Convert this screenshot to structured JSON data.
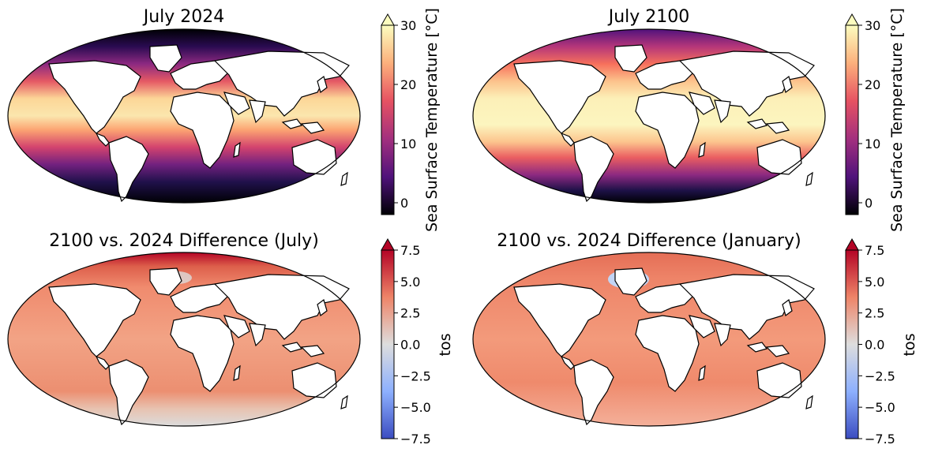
{
  "panels": [
    {
      "title": "July 2024",
      "kind": "sst",
      "colorbar_label": "Sea Surface Temperature [°C]",
      "colorbar_ticks": [
        "30",
        "20",
        "10",
        "0"
      ],
      "colorbar_tick_values": [
        30,
        20,
        10,
        0
      ],
      "colorbar_range": [
        -2,
        30
      ],
      "colormap": "magma"
    },
    {
      "title": "July 2100",
      "kind": "sst",
      "colorbar_label": "Sea Surface Temperature [°C]",
      "colorbar_ticks": [
        "30",
        "20",
        "10",
        "0"
      ],
      "colorbar_tick_values": [
        30,
        20,
        10,
        0
      ],
      "colorbar_range": [
        -2,
        30
      ],
      "colormap": "magma"
    },
    {
      "title": "2100 vs. 2024 Difference (July)",
      "kind": "diff",
      "colorbar_label": "tos",
      "colorbar_ticks": [
        "7.5",
        "5.0",
        "2.5",
        "0.0",
        "−2.5",
        "−5.0",
        "−7.5"
      ],
      "colorbar_tick_values": [
        7.5,
        5.0,
        2.5,
        0.0,
        -2.5,
        -5.0,
        -7.5
      ],
      "colorbar_range": [
        -7.5,
        7.5
      ],
      "colormap": "coolwarm"
    },
    {
      "title": "2100 vs. 2024 Difference (January)",
      "kind": "diff",
      "colorbar_label": "tos",
      "colorbar_ticks": [
        "7.5",
        "5.0",
        "2.5",
        "0.0",
        "−2.5",
        "−5.0",
        "−7.5"
      ],
      "colorbar_tick_values": [
        7.5,
        5.0,
        2.5,
        0.0,
        -2.5,
        -5.0,
        -7.5
      ],
      "colorbar_range": [
        -7.5,
        7.5
      ],
      "colormap": "coolwarm"
    }
  ],
  "colors": {
    "sst_hot": "#fcfdbf",
    "sst_warm": "#f8865c",
    "sst_mid": "#b5367a",
    "sst_cool": "#51127c",
    "sst_cold": "#000004",
    "diff_high": "#b40426",
    "diff_warm": "#e8765c",
    "diff_zero": "#dddddd",
    "diff_cool": "#8db0fe",
    "diff_low": "#3b4cc0",
    "land": "#ffffff",
    "coast": "#000000"
  }
}
